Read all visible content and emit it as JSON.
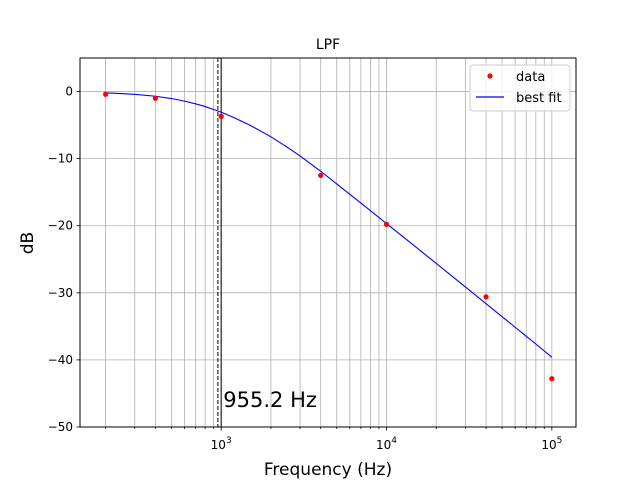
{
  "chart_data": {
    "type": "scatter",
    "title": "LPF",
    "xlabel": "Frequency (Hz)",
    "ylabel": "dB",
    "xscale": "log",
    "xlim": [
      140,
      140000
    ],
    "ylim": [
      -50,
      5
    ],
    "grid": true,
    "legend_placement": "top-right",
    "yticks": [
      0,
      -10,
      -20,
      -30,
      -40,
      -50
    ],
    "ytick_labels": [
      "0",
      "−10",
      "−20",
      "−30",
      "−40",
      "−50"
    ],
    "xticks": [
      1000,
      10000,
      100000
    ],
    "xtick_labels": [
      {
        "base": "10",
        "exp": "3"
      },
      {
        "base": "10",
        "exp": "4"
      },
      {
        "base": "10",
        "exp": "5"
      }
    ],
    "series": [
      {
        "name": "data",
        "kind": "points",
        "color": "#ff0000",
        "x": [
          200,
          400,
          1000,
          4000,
          10000,
          40000,
          100000
        ],
        "y": [
          -0.4,
          -1.0,
          -3.7,
          -12.5,
          -19.8,
          -30.6,
          -42.8
        ]
      },
      {
        "name": "best fit",
        "kind": "line",
        "color": "#0000ff",
        "cutoff_hz": 955.2,
        "x": [
          200,
          300,
          400,
          500,
          600,
          700,
          800,
          900,
          1000,
          1200,
          1500,
          2000,
          2500,
          3000,
          4000,
          5000,
          6000,
          7000,
          8000,
          10000,
          15000,
          20000,
          30000,
          40000,
          50000,
          60000,
          70000,
          80000,
          100000
        ],
        "y": [
          -0.19,
          -0.41,
          -0.7,
          -1.04,
          -1.43,
          -1.83,
          -2.24,
          -2.67,
          -3.07,
          -3.91,
          -5.04,
          -6.75,
          -8.27,
          -9.6,
          -11.88,
          -13.77,
          -15.31,
          -16.62,
          -17.76,
          -19.68,
          -23.15,
          -25.62,
          -29.12,
          -31.62,
          -33.55,
          -35.13,
          -36.47,
          -37.63,
          -39.6
        ]
      }
    ],
    "vlines": [
      {
        "x": 955.2,
        "color": "#000000",
        "style": "dashed"
      },
      {
        "x": 1000,
        "color": "#000000",
        "style": "solid"
      }
    ],
    "annotation": {
      "text": "955.2 Hz",
      "x": 1030,
      "y": -46
    }
  }
}
